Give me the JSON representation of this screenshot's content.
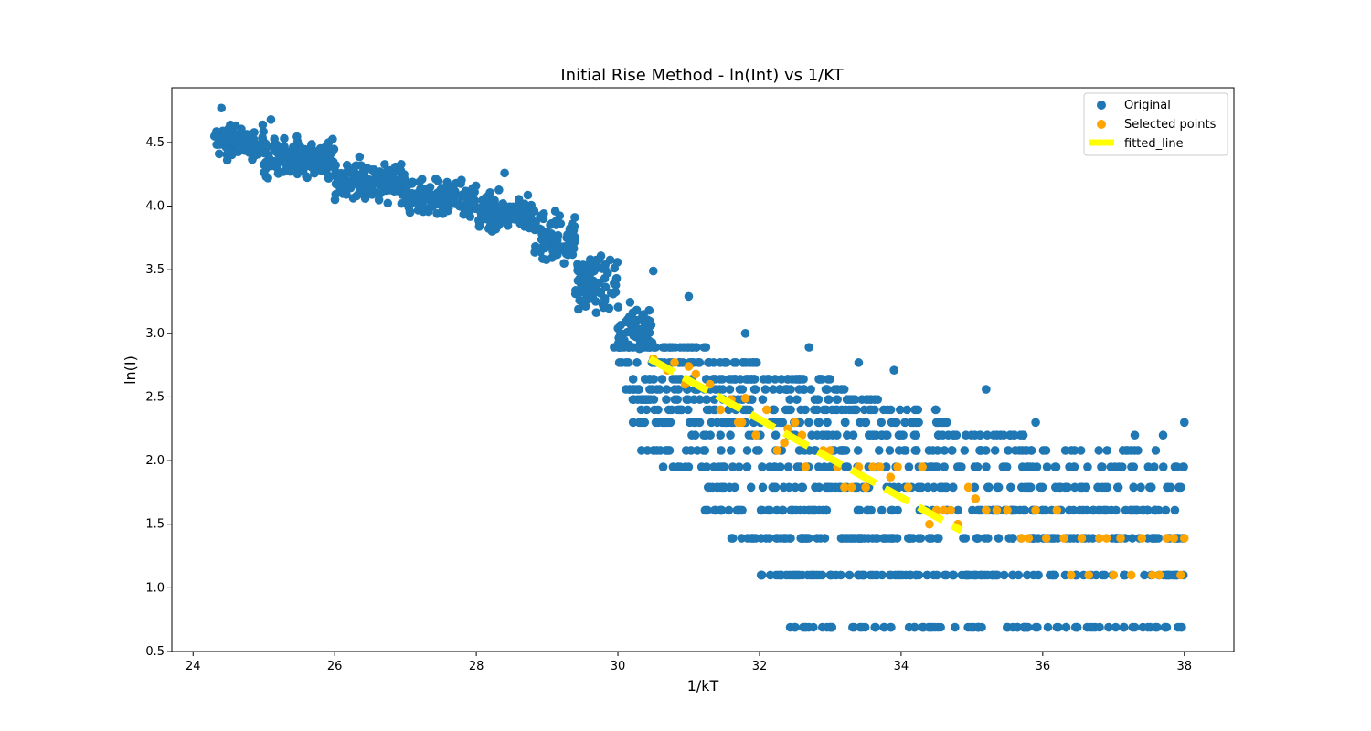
{
  "chart_data": {
    "type": "scatter",
    "title": "Initial Rise Method - ln(Int) vs 1/KT",
    "xlabel": "1/kT",
    "ylabel": "ln(I)",
    "xlim": [
      23.7,
      38.7
    ],
    "ylim": [
      0.5,
      4.93
    ],
    "xticks": [
      24,
      26,
      28,
      30,
      32,
      34,
      36,
      38
    ],
    "yticks": [
      0.5,
      1.0,
      1.5,
      2.0,
      2.5,
      3.0,
      3.5,
      4.0,
      4.5
    ],
    "grid": false,
    "legend_position": "top-right",
    "colors": {
      "original": "#1f77b4",
      "selected": "#ffa500",
      "fitted": "#ffff00"
    },
    "series": [
      {
        "name": "Original",
        "kind": "scatter",
        "clusters": [
          {
            "x_range": [
              24.3,
              25.0
            ],
            "y_center": 4.5,
            "spread": 0.12,
            "count": 90
          },
          {
            "x_range": [
              25.0,
              26.0
            ],
            "y_center": 4.38,
            "spread": 0.14,
            "count": 160
          },
          {
            "x_range": [
              26.0,
              27.0
            ],
            "y_center": 4.2,
            "spread": 0.14,
            "count": 160
          },
          {
            "x_range": [
              27.0,
              28.0
            ],
            "y_center": 4.05,
            "spread": 0.13,
            "count": 150
          },
          {
            "x_range": [
              28.0,
              28.8
            ],
            "y_center": 3.95,
            "spread": 0.14,
            "count": 110
          },
          {
            "x_range": [
              28.8,
              29.4
            ],
            "y_center": 3.75,
            "spread": 0.17,
            "count": 80
          },
          {
            "x_range": [
              29.4,
              30.0
            ],
            "y_center": 3.4,
            "spread": 0.2,
            "count": 80
          },
          {
            "x_range": [
              30.0,
              30.5
            ],
            "y_center": 3.05,
            "spread": 0.17,
            "count": 60
          }
        ],
        "levels": [
          {
            "y": 2.89,
            "x_range": [
              29.9,
              31.3
            ],
            "count": 40
          },
          {
            "y": 2.77,
            "x_range": [
              30.0,
              32.0
            ],
            "count": 40
          },
          {
            "y": 2.64,
            "x_range": [
              30.2,
              33.0
            ],
            "count": 55
          },
          {
            "y": 2.56,
            "x_range": [
              30.0,
              33.4
            ],
            "count": 55
          },
          {
            "y": 2.48,
            "x_range": [
              30.2,
              33.8
            ],
            "count": 55
          },
          {
            "y": 2.4,
            "x_range": [
              30.3,
              34.5
            ],
            "count": 60
          },
          {
            "y": 2.3,
            "x_range": [
              30.2,
              34.7
            ],
            "count": 65
          },
          {
            "y": 2.2,
            "x_range": [
              31.0,
              35.9
            ],
            "count": 65
          },
          {
            "y": 2.08,
            "x_range": [
              30.3,
              37.6
            ],
            "count": 80
          },
          {
            "y": 1.95,
            "x_range": [
              30.6,
              38.0
            ],
            "count": 95
          },
          {
            "y": 1.79,
            "x_range": [
              31.2,
              38.0
            ],
            "count": 110
          },
          {
            "y": 1.61,
            "x_range": [
              31.2,
              38.0
            ],
            "count": 120
          },
          {
            "y": 1.39,
            "x_range": [
              31.6,
              38.0
            ],
            "count": 140
          },
          {
            "y": 1.1,
            "x_range": [
              32.0,
              38.0
            ],
            "count": 130
          },
          {
            "y": 0.69,
            "x_range": [
              32.4,
              38.0
            ],
            "count": 90
          }
        ],
        "outliers": [
          [
            24.4,
            4.77
          ],
          [
            25.1,
            4.68
          ],
          [
            28.4,
            4.26
          ],
          [
            30.5,
            3.49
          ],
          [
            31.0,
            3.29
          ],
          [
            31.8,
            3.0
          ],
          [
            32.7,
            2.89
          ],
          [
            33.4,
            2.77
          ],
          [
            33.9,
            2.71
          ],
          [
            35.2,
            2.56
          ],
          [
            35.9,
            2.3
          ],
          [
            38.0,
            2.3
          ],
          [
            37.3,
            2.2
          ],
          [
            37.7,
            2.2
          ],
          [
            36.0,
            1.61
          ]
        ]
      },
      {
        "name": "Selected points",
        "kind": "scatter",
        "points": [
          [
            30.5,
            2.8
          ],
          [
            30.7,
            2.71
          ],
          [
            30.8,
            2.77
          ],
          [
            30.95,
            2.6
          ],
          [
            31.0,
            2.74
          ],
          [
            31.1,
            2.68
          ],
          [
            31.3,
            2.6
          ],
          [
            31.45,
            2.4
          ],
          [
            31.6,
            2.48
          ],
          [
            31.7,
            2.3
          ],
          [
            31.75,
            2.3
          ],
          [
            31.8,
            2.49
          ],
          [
            31.95,
            2.2
          ],
          [
            32.1,
            2.4
          ],
          [
            32.25,
            2.08
          ],
          [
            32.35,
            2.14
          ],
          [
            32.4,
            2.25
          ],
          [
            32.5,
            2.3
          ],
          [
            32.6,
            2.2
          ],
          [
            32.65,
            1.95
          ],
          [
            32.9,
            2.08
          ],
          [
            33.0,
            2.08
          ],
          [
            33.1,
            1.95
          ],
          [
            33.2,
            1.79
          ],
          [
            33.3,
            1.79
          ],
          [
            33.4,
            1.95
          ],
          [
            33.5,
            1.79
          ],
          [
            33.6,
            1.95
          ],
          [
            33.7,
            1.95
          ],
          [
            33.85,
            1.87
          ],
          [
            33.95,
            1.95
          ],
          [
            34.1,
            1.79
          ],
          [
            34.3,
            1.95
          ],
          [
            34.4,
            1.5
          ],
          [
            34.5,
            1.61
          ],
          [
            34.6,
            1.61
          ],
          [
            34.7,
            1.61
          ],
          [
            34.8,
            1.5
          ],
          [
            34.95,
            1.79
          ],
          [
            35.05,
            1.7
          ],
          [
            35.2,
            1.61
          ],
          [
            35.35,
            1.61
          ],
          [
            35.5,
            1.61
          ],
          [
            35.7,
            1.39
          ],
          [
            35.8,
            1.39
          ],
          [
            35.9,
            1.61
          ],
          [
            36.05,
            1.39
          ],
          [
            36.2,
            1.61
          ],
          [
            36.3,
            1.39
          ],
          [
            36.4,
            1.1
          ],
          [
            36.55,
            1.39
          ],
          [
            36.65,
            1.1
          ],
          [
            36.8,
            1.39
          ],
          [
            36.9,
            1.39
          ],
          [
            37.0,
            1.1
          ],
          [
            37.1,
            1.39
          ],
          [
            37.25,
            1.1
          ],
          [
            37.4,
            1.39
          ],
          [
            37.55,
            1.1
          ],
          [
            37.65,
            1.1
          ],
          [
            37.75,
            1.39
          ],
          [
            37.85,
            1.39
          ],
          [
            37.95,
            1.1
          ],
          [
            38.0,
            1.39
          ]
        ]
      },
      {
        "name": "fitted_line",
        "kind": "line",
        "style": "dashed",
        "x": [
          30.45,
          34.85
        ],
        "y": [
          2.8,
          1.45
        ]
      }
    ]
  }
}
